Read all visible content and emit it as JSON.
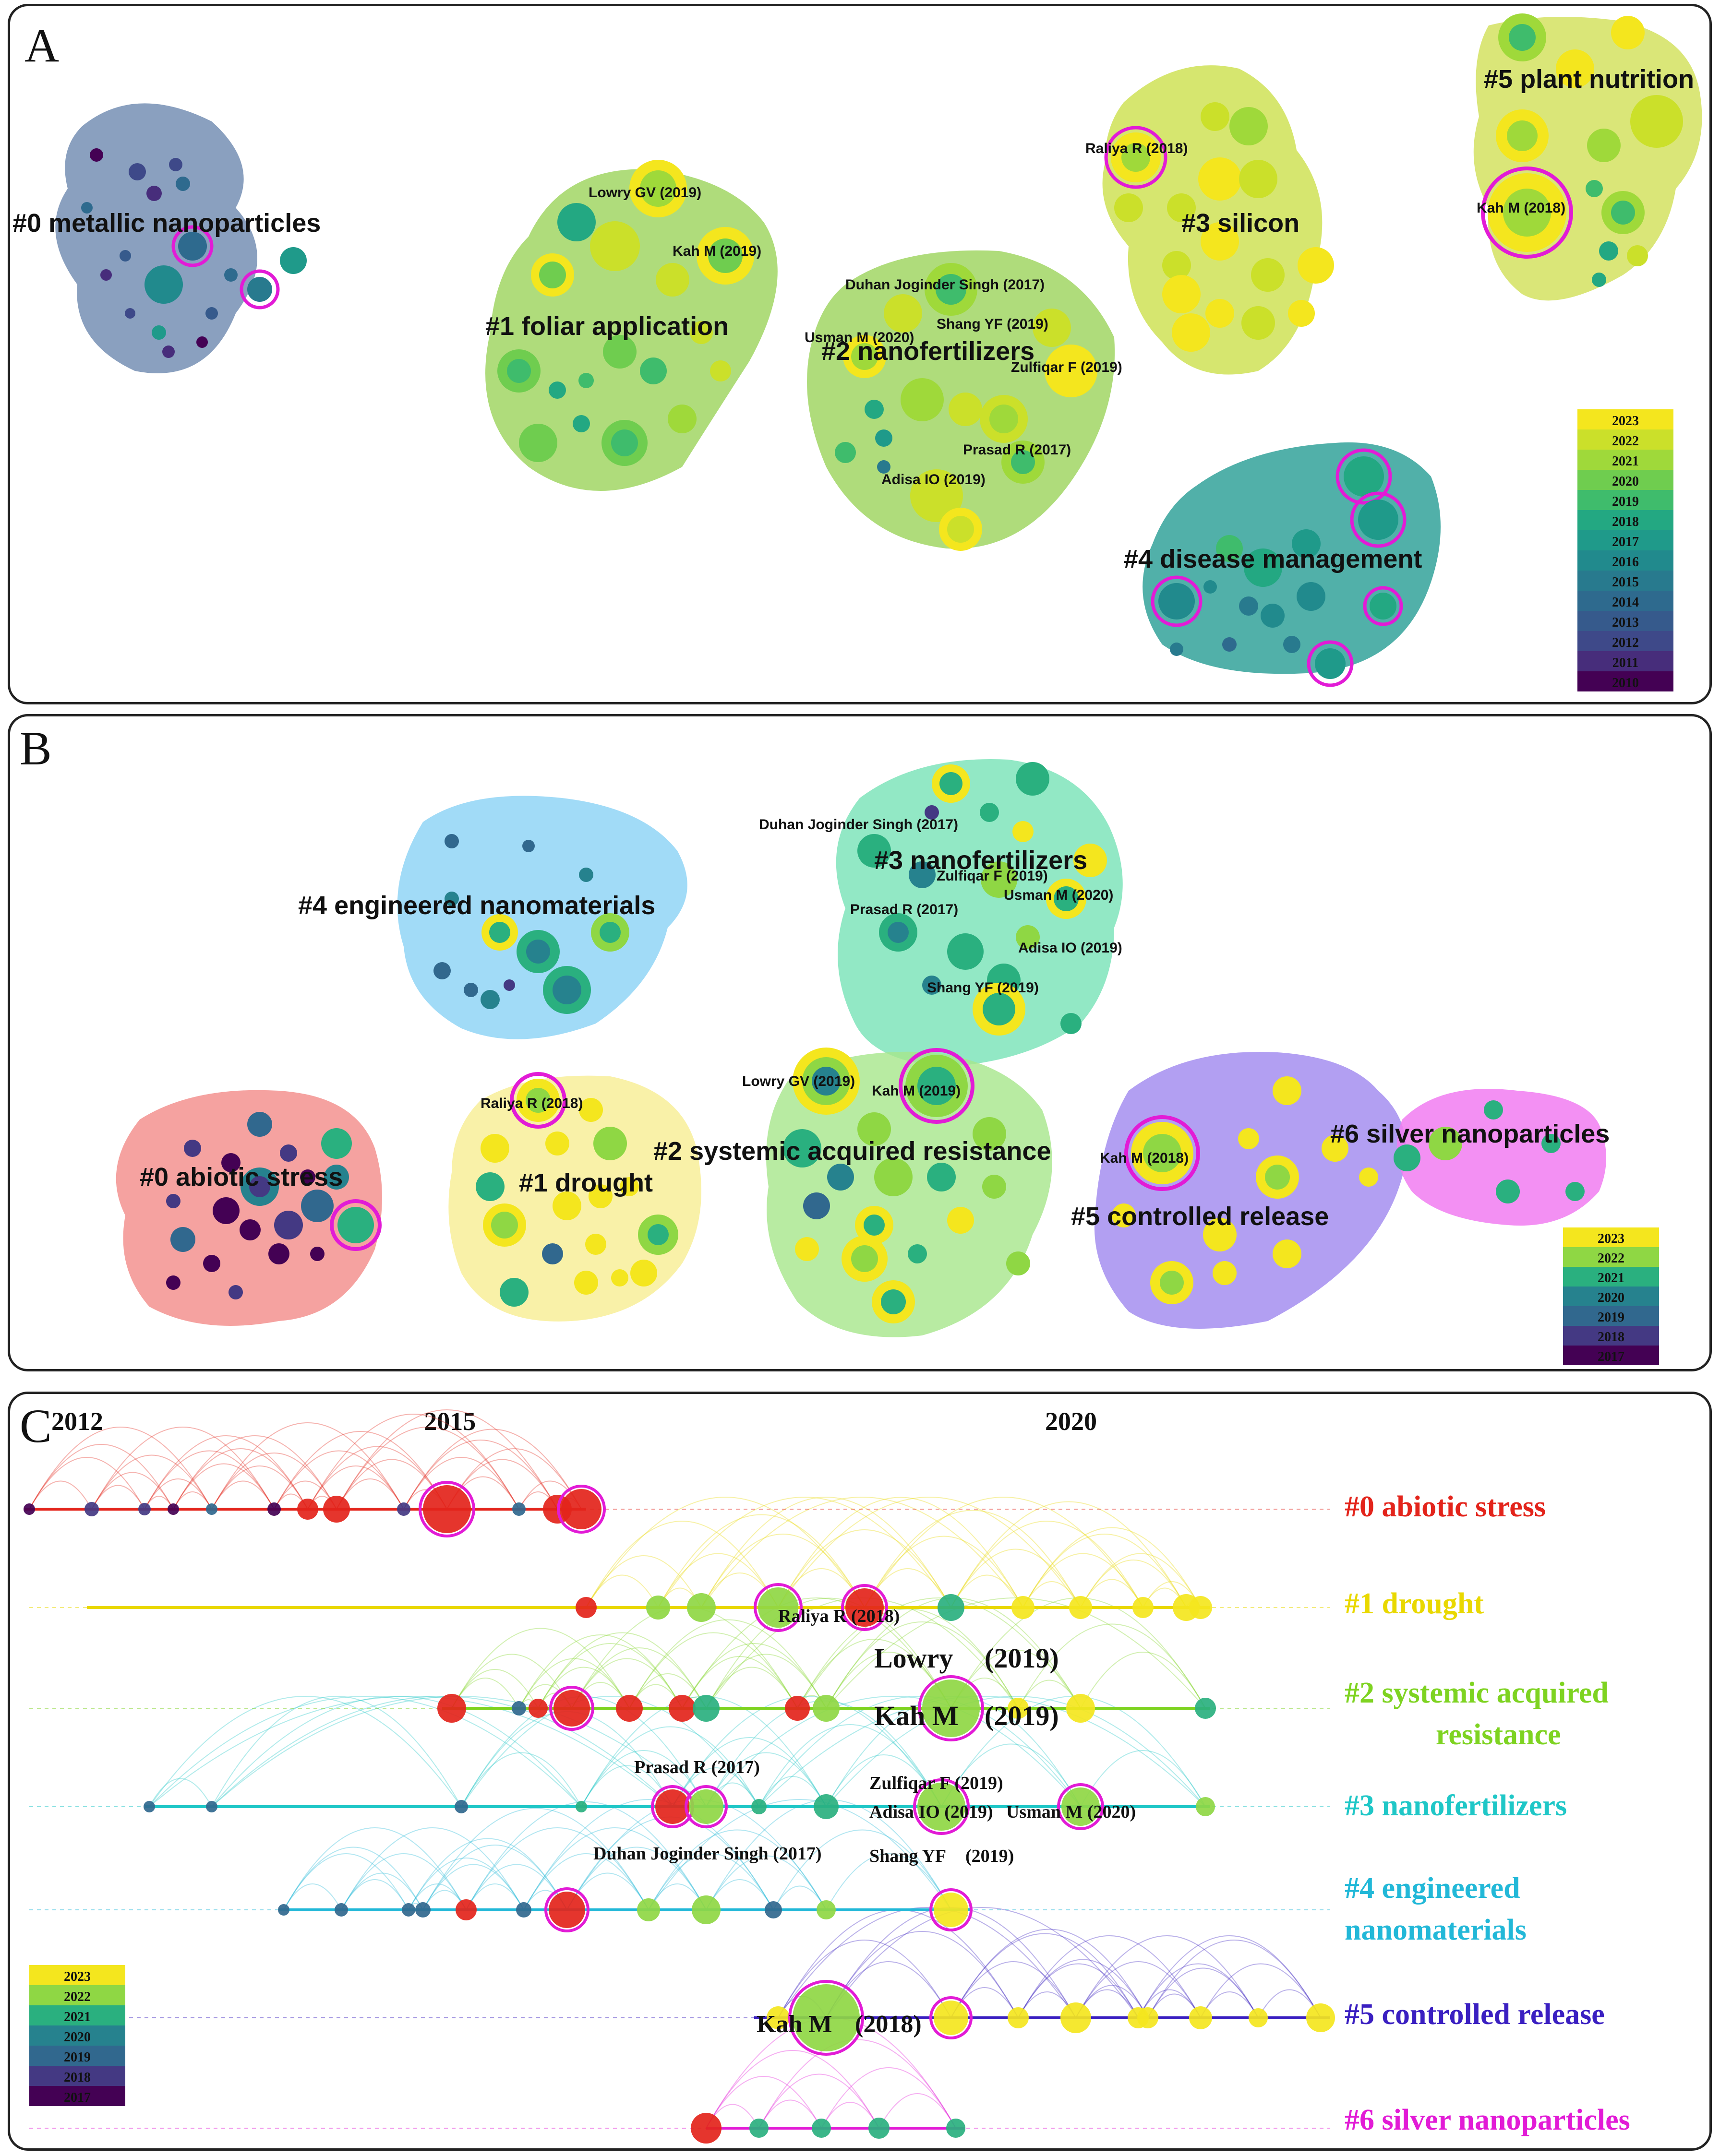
{
  "panels": [
    {
      "id": "A",
      "label": "A",
      "clusters": [
        {
          "id": "#0",
          "label": "#0 metallic nanoparticles"
        },
        {
          "id": "#1",
          "label": "#1 foliar application"
        },
        {
          "id": "#2",
          "label": "#2 nanofertilizers"
        },
        {
          "id": "#3",
          "label": "#3 silicon"
        },
        {
          "id": "#4",
          "label": "#4 disease management"
        },
        {
          "id": "#5",
          "label": "#5 plant nutrition"
        }
      ],
      "authors": [
        "Lowry GV (2019)",
        "Kah M (2019)",
        "Duhan Joginder Singh (2017)",
        "Shang YF (2019)",
        "Usman M (2020)",
        "Zulfiqar F (2019)",
        "Prasad R (2017)",
        "Adisa IO (2019)",
        "Raliya R (2018)",
        "Kah M (2018)"
      ],
      "legend": {
        "years": [
          "2023",
          "2022",
          "2021",
          "2020",
          "2019",
          "2018",
          "2017",
          "2016",
          "2015",
          "2014",
          "2013",
          "2012",
          "2011",
          "2010"
        ],
        "colors": [
          "#f4e61e",
          "#cbe02a",
          "#9fd93a",
          "#6fcd4f",
          "#3fbc6c",
          "#23a882",
          "#1f9a8a",
          "#218a8d",
          "#287a8e",
          "#2e6a8e",
          "#365a8c",
          "#3e4989",
          "#472d7b",
          "#440154"
        ]
      }
    },
    {
      "id": "B",
      "label": "B",
      "clusters": [
        {
          "id": "#0",
          "label": "#0 abiotic stress"
        },
        {
          "id": "#1",
          "label": "#1 drought"
        },
        {
          "id": "#2",
          "label": "#2 systemic acquired resistance"
        },
        {
          "id": "#3",
          "label": "#3 nanofertilizers"
        },
        {
          "id": "#4",
          "label": "#4 engineered nanomaterials"
        },
        {
          "id": "#5",
          "label": "#5 controlled release"
        },
        {
          "id": "#6",
          "label": "#6 silver nanoparticles"
        }
      ],
      "authors": [
        "Duhan Joginder Singh (2017)",
        "Zulfiqar F (2019)",
        "Usman M (2020)",
        "Prasad R (2017)",
        "Adisa IO (2019)",
        "Shang YF (2019)",
        "Raliya R (2018)",
        "Lowry GV (2019)",
        "Kah M (2019)",
        "Kah M (2018)"
      ],
      "legend": {
        "years": [
          "2023",
          "2022",
          "2021",
          "2020",
          "2019",
          "2018",
          "2017"
        ],
        "colors": [
          "#f4e61e",
          "#8fd744",
          "#2ab07f",
          "#26828e",
          "#31688e",
          "#443983",
          "#440154"
        ]
      }
    },
    {
      "id": "C",
      "label": "C",
      "years": [
        "2012",
        "2015",
        "2020"
      ],
      "year_values": [
        2012,
        2015,
        2020
      ],
      "timelines": [
        {
          "id": "#0",
          "label": "#0 abiotic stress",
          "color": "#e3241b"
        },
        {
          "id": "#1",
          "label": "#1 drought",
          "color": "#e9d800"
        },
        {
          "id": "#2",
          "label_line1": "#2 systemic acquired",
          "label_line2": "resistance",
          "color": "#7ed321"
        },
        {
          "id": "#3",
          "label": "#3 nanofertilizers",
          "color": "#1fc7c7"
        },
        {
          "id": "#4",
          "label_line1": "#4 engineered",
          "label_line2": "nanomaterials",
          "color": "#22b8d8"
        },
        {
          "id": "#5",
          "label": "#5 controlled release",
          "color": "#3a1fc1"
        },
        {
          "id": "#6",
          "label": "#6 silver nanoparticles",
          "color": "#e21bd6"
        }
      ],
      "authors": {
        "raliya": "Raliya R (2018)",
        "lowry_name": "Lowry",
        "lowry_year": "(2019)",
        "kah2019_name": "Kah M",
        "kah2019_year": "(2019)",
        "prasad": "Prasad R (2017)",
        "zulfiqar": "Zulfiqar F (2019)",
        "adisa": "Adisa IO (2019)",
        "usman": "Usman M (2020)",
        "duhan": "Duhan Joginder Singh (2017)",
        "shang_name": "Shang YF",
        "shang_year": "(2019)",
        "kah2018_name": "Kah M",
        "kah2018_year": "(2018)"
      },
      "legend": {
        "years": [
          "2023",
          "2022",
          "2021",
          "2020",
          "2019",
          "2018",
          "2017"
        ],
        "colors": [
          "#f4e61e",
          "#8fd744",
          "#2ab07f",
          "#26828e",
          "#31688e",
          "#443983",
          "#440154"
        ]
      }
    }
  ],
  "chart_data": [
    {
      "type": "network",
      "title": "A",
      "clusters": [
        "#0 metallic nanoparticles",
        "#1 foliar application",
        "#2 nanofertilizers",
        "#3 silicon",
        "#4 disease management",
        "#5 plant nutrition"
      ],
      "legend_years": [
        2010,
        2011,
        2012,
        2013,
        2014,
        2015,
        2016,
        2017,
        2018,
        2019,
        2020,
        2021,
        2022,
        2023
      ]
    },
    {
      "type": "network",
      "title": "B",
      "clusters": [
        "#0 abiotic stress",
        "#1 drought",
        "#2 systemic acquired resistance",
        "#3 nanofertilizers",
        "#4 engineered nanomaterials",
        "#5 controlled release",
        "#6 silver nanoparticles"
      ],
      "legend_years": [
        2017,
        2018,
        2019,
        2020,
        2021,
        2022,
        2023
      ]
    },
    {
      "type": "timeline",
      "title": "C",
      "x_ticks": [
        2012,
        2015,
        2020
      ],
      "rows": [
        "#0 abiotic stress",
        "#1 drought",
        "#2 systemic acquired resistance",
        "#3 nanofertilizers",
        "#4 engineered nanomaterials",
        "#5 controlled release",
        "#6 silver nanoparticles"
      ]
    }
  ]
}
